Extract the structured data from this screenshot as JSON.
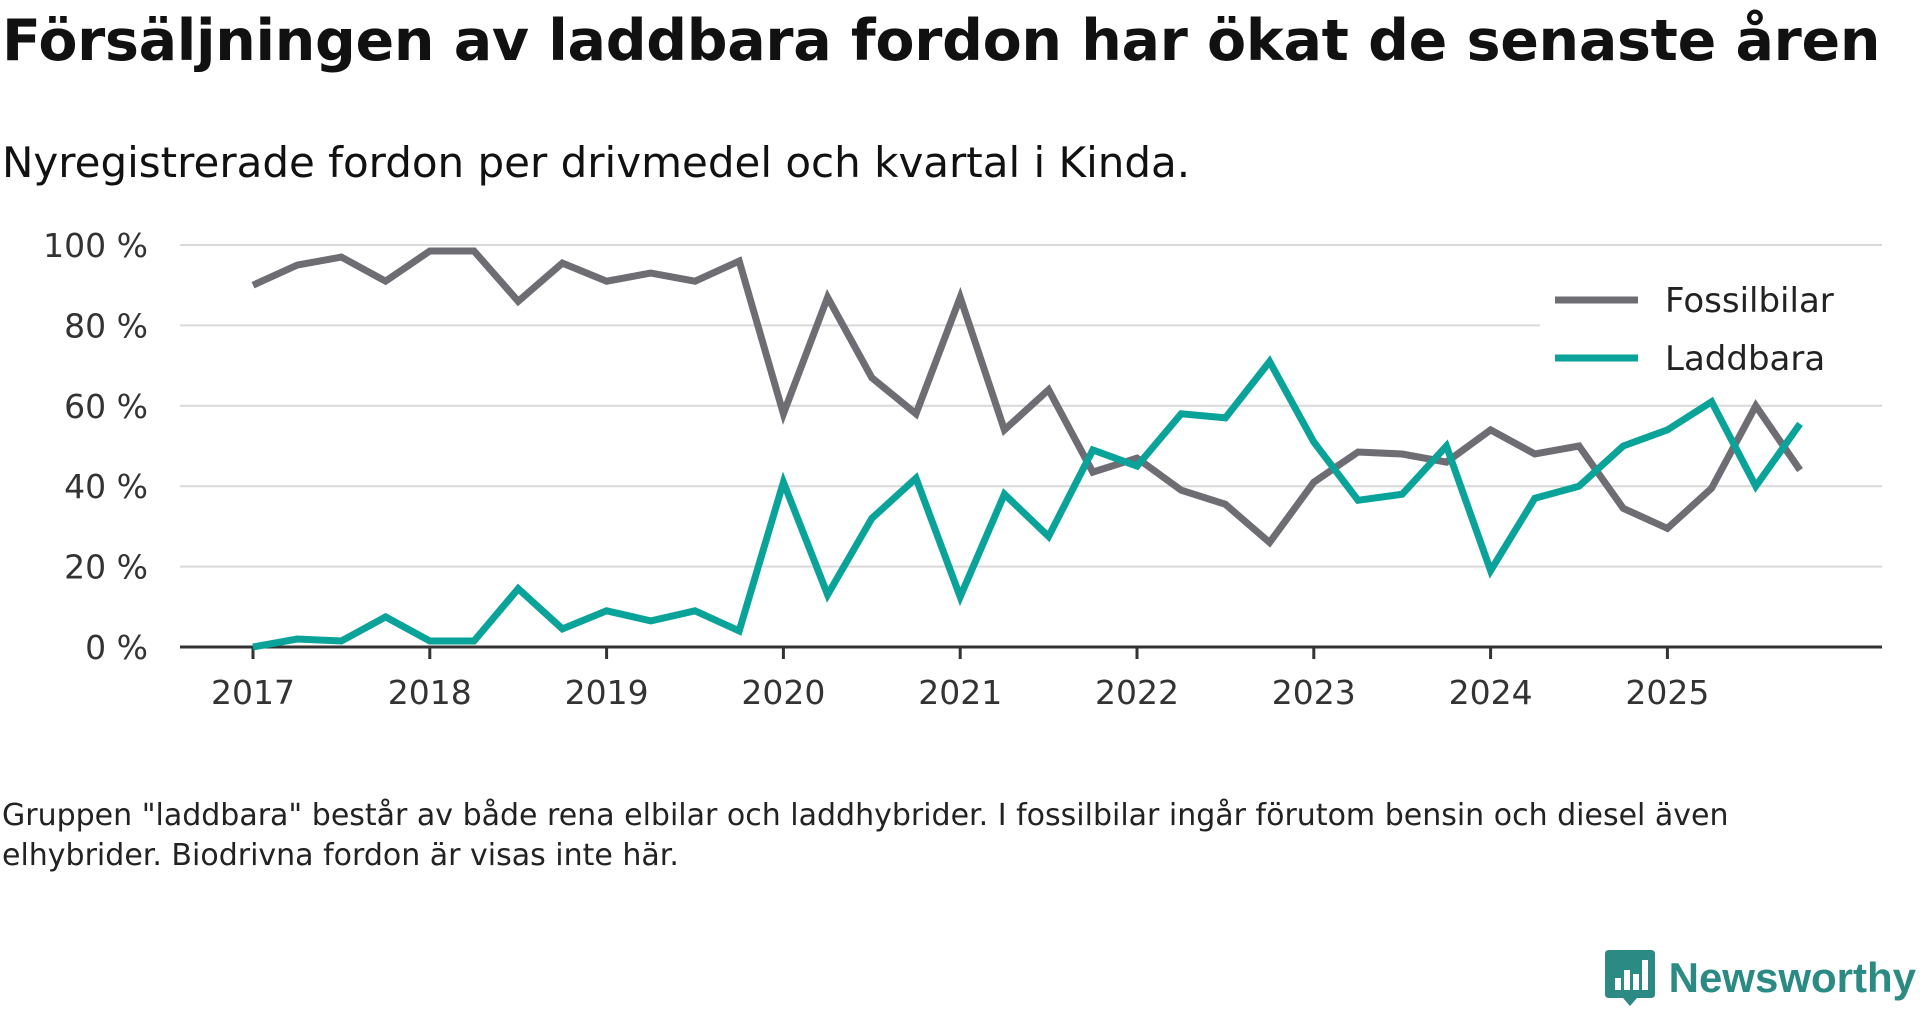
{
  "header": {
    "title": "Försäljningen av laddbara fordon har ökat de senaste åren",
    "subtitle": "Nyregistrerade fordon per drivmedel och kvartal i Kinda."
  },
  "chart_data": {
    "type": "line",
    "title": "Försäljningen av laddbara fordon har ökat de senaste åren",
    "subtitle": "Nyregistrerade fordon per drivmedel och kvartal i Kinda.",
    "xlabel": "",
    "ylabel": "",
    "ylim": [
      0,
      100
    ],
    "y_ticks": [
      0,
      20,
      40,
      60,
      80,
      100
    ],
    "y_tick_labels": [
      "0 %",
      "20 %",
      "40 %",
      "60 %",
      "80 %",
      "100 %"
    ],
    "x_tick_years": [
      2017,
      2018,
      2019,
      2020,
      2021,
      2022,
      2023,
      2024,
      2025
    ],
    "x_tick_labels": [
      "2017",
      "2018",
      "2019",
      "2020",
      "2021",
      "2022",
      "2023",
      "2024",
      "2025"
    ],
    "x": [
      "2017 Q1",
      "2017 Q2",
      "2017 Q3",
      "2017 Q4",
      "2018 Q1",
      "2018 Q2",
      "2018 Q3",
      "2018 Q4",
      "2019 Q1",
      "2019 Q2",
      "2019 Q3",
      "2019 Q4",
      "2020 Q1",
      "2020 Q2",
      "2020 Q3",
      "2020 Q4",
      "2021 Q1",
      "2021 Q2",
      "2021 Q3",
      "2021 Q4",
      "2022 Q1",
      "2022 Q2",
      "2022 Q3",
      "2022 Q4",
      "2023 Q1",
      "2023 Q2",
      "2023 Q3",
      "2023 Q4",
      "2024 Q1",
      "2024 Q2",
      "2024 Q3",
      "2024 Q4",
      "2025 Q1",
      "2025 Q2",
      "2025 Q3",
      "2025 Q4"
    ],
    "grid": true,
    "legend_position": "top-right",
    "series": [
      {
        "name": "Fossilbilar",
        "color": "#6e6d74",
        "values": [
          90,
          95,
          97,
          91,
          98.5,
          98.5,
          86,
          95.5,
          91,
          93,
          91,
          96,
          58,
          87,
          67,
          58,
          87,
          54,
          64,
          43.5,
          47,
          39,
          35.5,
          26,
          41,
          48.5,
          48,
          46,
          54,
          48,
          50,
          34.5,
          29.5,
          39.5,
          60,
          44
        ]
      },
      {
        "name": "Laddbara",
        "color": "#0aa39a",
        "values": [
          0,
          2,
          1.5,
          7.5,
          1.5,
          1.5,
          14.5,
          4.5,
          9,
          6.5,
          9,
          4,
          41,
          13,
          32,
          42,
          12.5,
          38,
          27.5,
          49,
          45,
          58,
          57,
          71,
          51,
          36.5,
          38,
          50,
          19,
          37,
          40,
          50,
          54,
          61,
          40,
          55.5
        ]
      }
    ]
  },
  "note": "Gruppen \"laddbara\" består av både rena elbilar och laddhybrider. I fossilbilar ingår förutom bensin och diesel även elhybrider. Biodrivna fordon är visas inte här.",
  "brand": {
    "name": "Newsworthy",
    "icon": "newsworthy-logo-icon",
    "color": "#2b8a84"
  }
}
